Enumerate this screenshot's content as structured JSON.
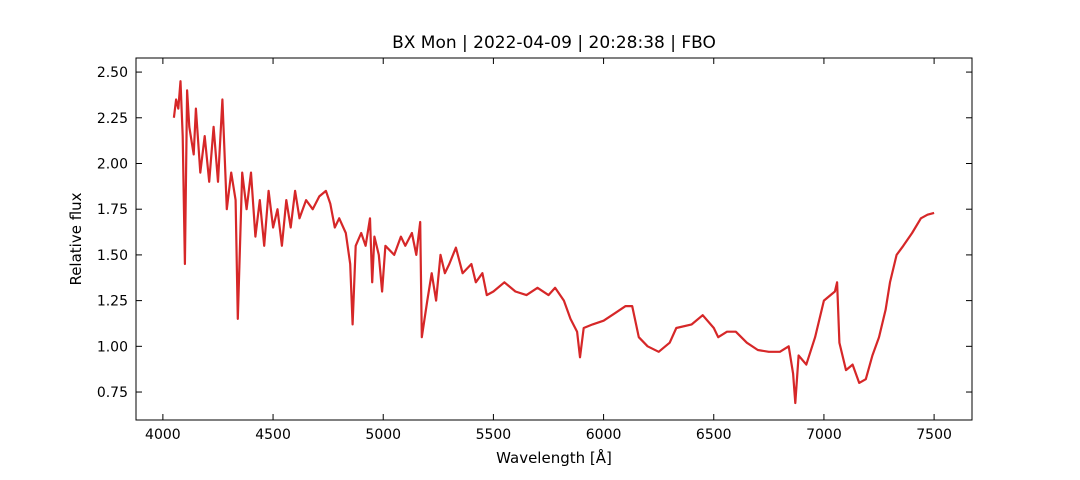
{
  "chart_data": {
    "type": "line",
    "title": "BX Mon | 2022-04-09 | 20:28:38 | FBO",
    "x_label": "Wavelength [Å]",
    "y_label": "Relative flux",
    "color": "#d62728",
    "x": [
      4050,
      4060,
      4070,
      4080,
      4090,
      4100,
      4110,
      4120,
      4140,
      4150,
      4170,
      4190,
      4210,
      4230,
      4250,
      4270,
      4290,
      4310,
      4330,
      4340,
      4360,
      4380,
      4400,
      4420,
      4440,
      4460,
      4480,
      4500,
      4520,
      4540,
      4560,
      4580,
      4600,
      4620,
      4650,
      4680,
      4710,
      4740,
      4760,
      4780,
      4800,
      4830,
      4850,
      4861,
      4875,
      4900,
      4920,
      4940,
      4950,
      4960,
      4980,
      4995,
      5010,
      5050,
      5080,
      5100,
      5130,
      5150,
      5168,
      5175,
      5200,
      5220,
      5240,
      5260,
      5280,
      5300,
      5330,
      5360,
      5400,
      5420,
      5450,
      5470,
      5500,
      5550,
      5600,
      5650,
      5700,
      5750,
      5780,
      5820,
      5850,
      5880,
      5893,
      5910,
      5950,
      6000,
      6050,
      6100,
      6130,
      6160,
      6200,
      6250,
      6300,
      6330,
      6400,
      6450,
      6500,
      6520,
      6560,
      6600,
      6650,
      6700,
      6750,
      6800,
      6840,
      6860,
      6870,
      6885,
      6920,
      6960,
      7000,
      7030,
      7050,
      7060,
      7070,
      7100,
      7130,
      7160,
      7190,
      7220,
      7250,
      7280,
      7300,
      7330,
      7360,
      7400,
      7440,
      7470,
      7500
    ],
    "values": [
      2.25,
      2.35,
      2.3,
      2.45,
      2.15,
      1.45,
      2.4,
      2.2,
      2.05,
      2.3,
      1.95,
      2.15,
      1.9,
      2.2,
      1.9,
      2.35,
      1.75,
      1.95,
      1.8,
      1.15,
      1.95,
      1.75,
      1.95,
      1.6,
      1.8,
      1.55,
      1.85,
      1.65,
      1.75,
      1.55,
      1.8,
      1.65,
      1.85,
      1.7,
      1.8,
      1.75,
      1.82,
      1.85,
      1.78,
      1.65,
      1.7,
      1.62,
      1.45,
      1.12,
      1.55,
      1.62,
      1.55,
      1.7,
      1.35,
      1.6,
      1.5,
      1.3,
      1.55,
      1.5,
      1.6,
      1.55,
      1.62,
      1.5,
      1.68,
      1.05,
      1.25,
      1.4,
      1.25,
      1.5,
      1.4,
      1.45,
      1.54,
      1.4,
      1.45,
      1.35,
      1.4,
      1.28,
      1.3,
      1.35,
      1.3,
      1.28,
      1.32,
      1.28,
      1.32,
      1.25,
      1.15,
      1.08,
      0.94,
      1.1,
      1.12,
      1.14,
      1.18,
      1.22,
      1.22,
      1.05,
      1.0,
      0.97,
      1.02,
      1.1,
      1.12,
      1.17,
      1.1,
      1.05,
      1.08,
      1.08,
      1.02,
      0.98,
      0.97,
      0.97,
      1.0,
      0.85,
      0.69,
      0.95,
      0.9,
      1.05,
      1.25,
      1.28,
      1.3,
      1.35,
      1.02,
      0.87,
      0.9,
      0.8,
      0.82,
      0.95,
      1.05,
      1.2,
      1.35,
      1.5,
      1.55,
      1.62,
      1.7,
      1.72,
      1.73
    ],
    "xlim": [
      3878,
      7672
    ],
    "ylim": [
      0.597,
      2.577
    ],
    "xticks": [
      4000,
      4500,
      5000,
      5500,
      6000,
      6500,
      7000,
      7500
    ],
    "yticks": [
      0.75,
      {
        "value": 1.0,
        "label": "1.00"
      },
      1.25,
      {
        "value": 1.5,
        "label": "1.50"
      },
      1.75,
      {
        "value": 2.0,
        "label": "2.00"
      },
      2.25,
      {
        "value": 2.5,
        "label": "2.50"
      }
    ]
  }
}
